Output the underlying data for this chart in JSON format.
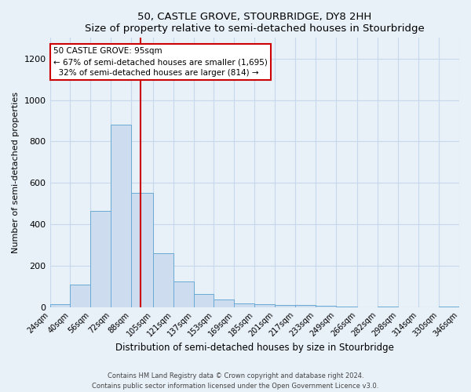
{
  "title": "50, CASTLE GROVE, STOURBRIDGE, DY8 2HH",
  "subtitle": "Size of property relative to semi-detached houses in Stourbridge",
  "xlabel": "Distribution of semi-detached houses by size in Stourbridge",
  "ylabel": "Number of semi-detached properties",
  "bin_labels": [
    "24sqm",
    "40sqm",
    "56sqm",
    "72sqm",
    "88sqm",
    "105sqm",
    "121sqm",
    "137sqm",
    "153sqm",
    "169sqm",
    "185sqm",
    "201sqm",
    "217sqm",
    "233sqm",
    "249sqm",
    "266sqm",
    "282sqm",
    "298sqm",
    "314sqm",
    "330sqm",
    "346sqm"
  ],
  "bin_edges": [
    24,
    40,
    56,
    72,
    88,
    105,
    121,
    137,
    153,
    169,
    185,
    201,
    217,
    233,
    249,
    266,
    282,
    298,
    314,
    330,
    346
  ],
  "bar_heights": [
    15,
    110,
    465,
    880,
    550,
    260,
    125,
    62,
    35,
    18,
    15,
    12,
    10,
    5,
    4,
    0,
    4,
    0,
    0,
    2
  ],
  "bar_color": "#cddcee",
  "bar_edge_color": "#6aaad4",
  "property_size": 95,
  "vline_color": "#cc0000",
  "annotation_title": "50 CASTLE GROVE: 95sqm",
  "annotation_line1": "← 67% of semi-detached houses are smaller (1,695)",
  "annotation_line2": "  32% of semi-detached houses are larger (814) →",
  "annotation_box_color": "#ffffff",
  "annotation_box_edge": "#cc0000",
  "ylim": [
    0,
    1300
  ],
  "yticks": [
    0,
    200,
    400,
    600,
    800,
    1000,
    1200
  ],
  "grid_color": "#c5d8ec",
  "bg_color": "#e8f0f8",
  "footer1": "Contains HM Land Registry data © Crown copyright and database right 2024.",
  "footer2": "Contains public sector information licensed under the Open Government Licence v3.0."
}
